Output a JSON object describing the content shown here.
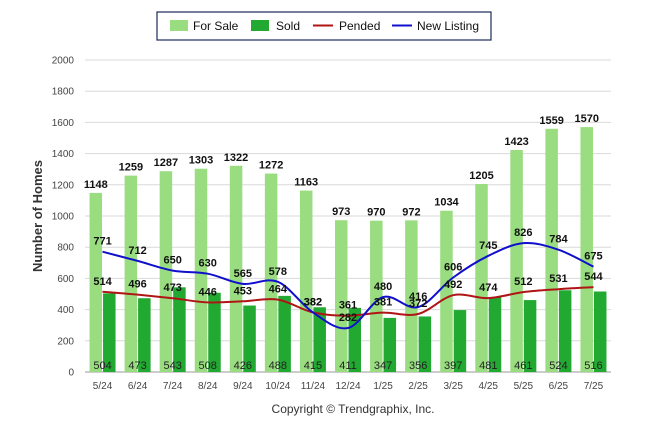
{
  "chart_data": {
    "type": "bar",
    "categories": [
      "5/24",
      "6/24",
      "7/24",
      "8/24",
      "9/24",
      "10/24",
      "11/24",
      "12/24",
      "1/25",
      "2/25",
      "3/25",
      "4/25",
      "5/25",
      "6/25",
      "7/25"
    ],
    "series": [
      {
        "name": "For Sale",
        "type": "bar",
        "color": "#99dd80",
        "values": [
          1148,
          1259,
          1287,
          1303,
          1322,
          1272,
          1163,
          973,
          970,
          972,
          1034,
          1205,
          1423,
          1559,
          1570
        ]
      },
      {
        "name": "Sold",
        "type": "bar",
        "color": "#22a932",
        "values": [
          504,
          473,
          543,
          508,
          426,
          488,
          415,
          411,
          347,
          356,
          397,
          481,
          461,
          524,
          516
        ]
      },
      {
        "name": "Pended",
        "type": "line",
        "color": "#b01515",
        "values": [
          514,
          496,
          473,
          446,
          453,
          464,
          382,
          361,
          381,
          372,
          492,
          474,
          512,
          531,
          544
        ]
      },
      {
        "name": "New Listing",
        "type": "line",
        "color": "#1010cc",
        "values": [
          771,
          712,
          650,
          630,
          565,
          578,
          382,
          282,
          480,
          416,
          606,
          745,
          826,
          784,
          675
        ]
      }
    ],
    "ylabel": "Number of Homes",
    "xlabel": "",
    "ylim": [
      0,
      2000
    ],
    "yticks": [
      0,
      200,
      400,
      600,
      800,
      1000,
      1200,
      1400,
      1600,
      1800,
      2000
    ],
    "grid": true,
    "legend_position": "top-center",
    "credit": "Copyright © Trendgraphix, Inc."
  }
}
